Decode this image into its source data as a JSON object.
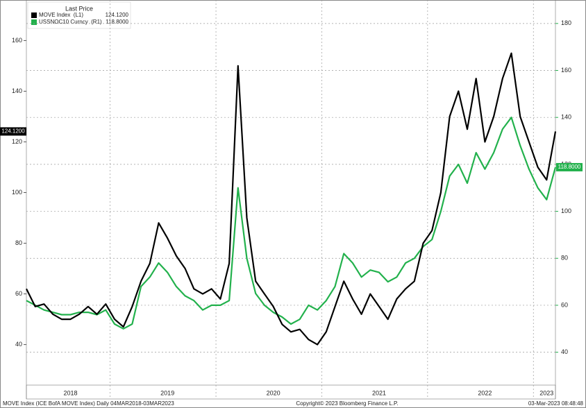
{
  "chart_data": {
    "type": "line",
    "legend_title": "Last Price",
    "categories": [
      null,
      null,
      null,
      null,
      null,
      "2018",
      null,
      null,
      null,
      null,
      null,
      null,
      null,
      null,
      null,
      null,
      "2019",
      null,
      null,
      null,
      null,
      null,
      null,
      null,
      null,
      null,
      null,
      null,
      "2020",
      null,
      null,
      null,
      null,
      null,
      null,
      null,
      null,
      null,
      null,
      null,
      "2021",
      null,
      null,
      null,
      null,
      null,
      null,
      null,
      null,
      null,
      null,
      null,
      "2022",
      null,
      null,
      null,
      null,
      null,
      null,
      "2023",
      null
    ],
    "series": [
      {
        "name": "MOVE Index  (L1)",
        "color": "#000000",
        "axis": "y",
        "last_price": {
          "value": 124.12,
          "label": "124.1200"
        },
        "values": [
          62,
          55,
          56,
          52,
          50,
          50,
          52,
          55,
          52,
          56,
          50,
          47,
          55,
          65,
          72,
          88,
          82,
          75,
          70,
          62,
          60,
          62,
          58,
          72,
          150,
          90,
          65,
          60,
          55,
          48,
          45,
          46,
          42,
          40,
          45,
          55,
          65,
          58,
          52,
          60,
          55,
          50,
          58,
          62,
          65,
          80,
          85,
          100,
          130,
          140,
          125,
          145,
          120,
          130,
          145,
          155,
          130,
          120,
          110,
          105,
          124.12
        ]
      },
      {
        "name": "USSNOC10 Curncy  (R1)",
        "color": "#22b14c",
        "axis": "y2",
        "last_price": {
          "value": 118.8,
          "label": "118.8000"
        },
        "values": [
          62,
          60,
          58,
          57,
          56,
          56,
          57,
          57,
          56,
          58,
          52,
          50,
          52,
          68,
          72,
          78,
          74,
          68,
          64,
          62,
          58,
          60,
          60,
          62,
          110,
          80,
          65,
          60,
          57,
          55,
          52,
          54,
          60,
          58,
          62,
          68,
          82,
          78,
          72,
          75,
          74,
          70,
          72,
          78,
          80,
          85,
          88,
          100,
          115,
          120,
          112,
          125,
          118,
          125,
          135,
          140,
          128,
          118,
          110,
          105,
          118.8
        ]
      }
    ],
    "ylim": [
      24,
      176
    ],
    "yticks": [
      40,
      60,
      80,
      100,
      120,
      140,
      160
    ],
    "y2lim": [
      26,
      190
    ],
    "y2ticks": [
      40,
      60,
      80,
      100,
      120,
      140,
      160,
      180
    ],
    "grid": true,
    "footer_left": "MOVE Index (ICE BofA MOVE Index)  Daily 04MAR2018-03MAR2023",
    "footer_center": "Copyright© 2023 Bloomberg Finance L.P.",
    "footer_right": "03-Mar-2023 08:48:48"
  }
}
